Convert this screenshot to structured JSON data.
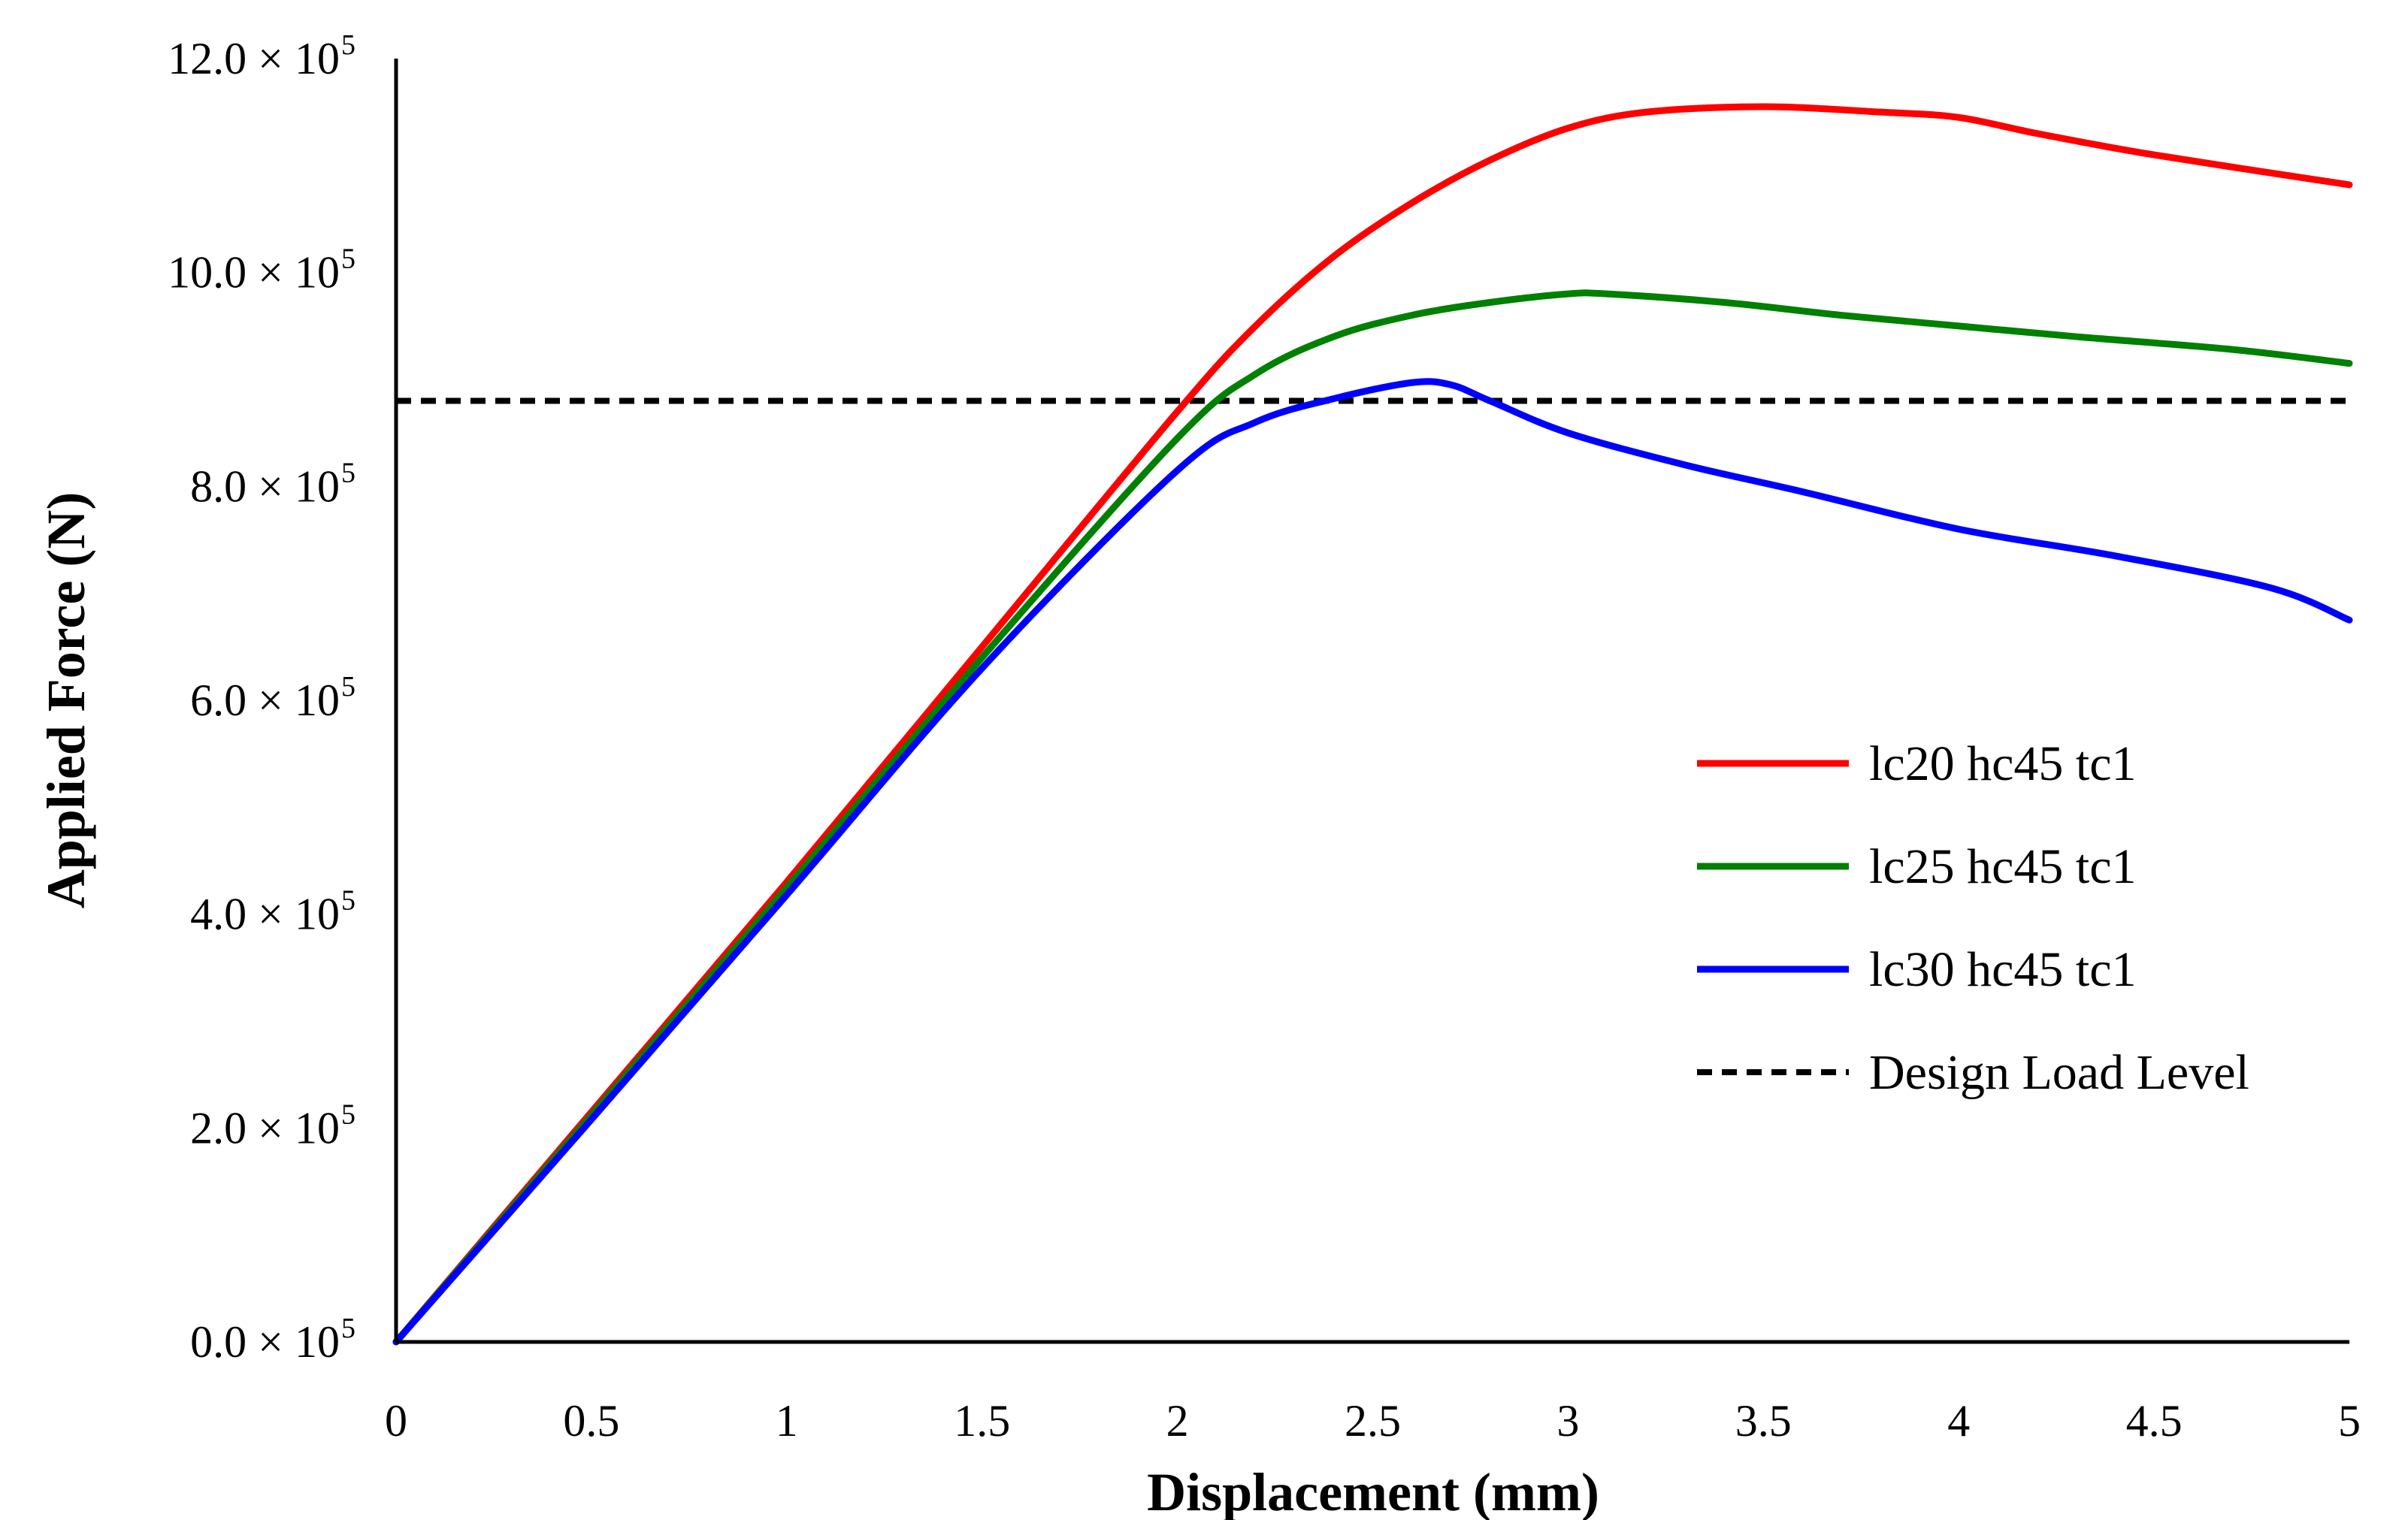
{
  "chart_data": {
    "type": "line",
    "title": "",
    "xlabel": "Displacement (mm)",
    "ylabel": "Applied Force (N)",
    "xlim": [
      0,
      5
    ],
    "ylim": [
      0,
      1200000
    ],
    "x_ticks": [
      {
        "value": 0,
        "label": "0"
      },
      {
        "value": 0.5,
        "label": "0.5"
      },
      {
        "value": 1,
        "label": "1"
      },
      {
        "value": 1.5,
        "label": "1.5"
      },
      {
        "value": 2,
        "label": "2"
      },
      {
        "value": 2.5,
        "label": "2.5"
      },
      {
        "value": 3,
        "label": "3"
      },
      {
        "value": 3.5,
        "label": "3.5"
      },
      {
        "value": 4,
        "label": "4"
      },
      {
        "value": 4.5,
        "label": "4.5"
      },
      {
        "value": 5,
        "label": "5"
      }
    ],
    "y_ticks": [
      {
        "value": 0,
        "mantissa": "0.0 × 10",
        "exponent": "5"
      },
      {
        "value": 200000,
        "mantissa": "2.0 × 10",
        "exponent": "5"
      },
      {
        "value": 400000,
        "mantissa": "4.0 × 10",
        "exponent": "5"
      },
      {
        "value": 600000,
        "mantissa": "6.0 × 10",
        "exponent": "5"
      },
      {
        "value": 800000,
        "mantissa": "8.0 × 10",
        "exponent": "5"
      },
      {
        "value": 1000000,
        "mantissa": "10.0 × 10",
        "exponent": "5"
      },
      {
        "value": 1200000,
        "mantissa": "12.0 × 10",
        "exponent": "5"
      }
    ],
    "series": [
      {
        "name": "lc20 hc45 tc1",
        "color": "#ff0000",
        "points": [
          [
            0,
            0
          ],
          [
            0.5,
            215000
          ],
          [
            1,
            430000
          ],
          [
            1.5,
            650000
          ],
          [
            2,
            870000
          ],
          [
            2.2,
            950000
          ],
          [
            2.4,
            1015000
          ],
          [
            2.6,
            1065000
          ],
          [
            2.8,
            1105000
          ],
          [
            3,
            1135000
          ],
          [
            3.2,
            1150000
          ],
          [
            3.5,
            1155000
          ],
          [
            3.8,
            1150000
          ],
          [
            4,
            1145000
          ],
          [
            4.2,
            1130000
          ],
          [
            4.5,
            1110000
          ],
          [
            5,
            1082000
          ]
        ]
      },
      {
        "name": "lc25 hc45 tc1",
        "color": "#008000",
        "points": [
          [
            0,
            0
          ],
          [
            0.5,
            212000
          ],
          [
            1,
            425000
          ],
          [
            1.5,
            640000
          ],
          [
            2,
            845000
          ],
          [
            2.2,
            905000
          ],
          [
            2.4,
            940000
          ],
          [
            2.6,
            960000
          ],
          [
            2.8,
            972000
          ],
          [
            3,
            980000
          ],
          [
            3.1,
            980000
          ],
          [
            3.4,
            972000
          ],
          [
            3.7,
            960000
          ],
          [
            4,
            950000
          ],
          [
            4.3,
            940000
          ],
          [
            4.7,
            928000
          ],
          [
            5,
            915000
          ]
        ]
      },
      {
        "name": "lc30 hc45 tc1",
        "color": "#0000ff",
        "points": [
          [
            0,
            0
          ],
          [
            0.5,
            208000
          ],
          [
            1,
            418000
          ],
          [
            1.5,
            630000
          ],
          [
            2,
            815000
          ],
          [
            2.2,
            860000
          ],
          [
            2.4,
            882000
          ],
          [
            2.6,
            897000
          ],
          [
            2.7,
            895000
          ],
          [
            2.8,
            880000
          ],
          [
            3,
            850000
          ],
          [
            3.3,
            820000
          ],
          [
            3.6,
            795000
          ],
          [
            4,
            760000
          ],
          [
            4.4,
            735000
          ],
          [
            4.8,
            705000
          ],
          [
            5,
            675000
          ]
        ]
      }
    ],
    "reference_line": {
      "name": "Design Load Level",
      "value": 880000,
      "color": "#000000",
      "style": "dashed"
    },
    "legend": {
      "position": "right",
      "entries": [
        {
          "label": "lc20 hc45 tc1",
          "color": "#ff0000",
          "style": "solid"
        },
        {
          "label": "lc25 hc45 tc1",
          "color": "#008000",
          "style": "solid"
        },
        {
          "label": "lc30 hc45 tc1",
          "color": "#0000ff",
          "style": "solid"
        },
        {
          "label": "Design Load Level",
          "color": "#000000",
          "style": "dashed"
        }
      ]
    },
    "grid": false
  }
}
